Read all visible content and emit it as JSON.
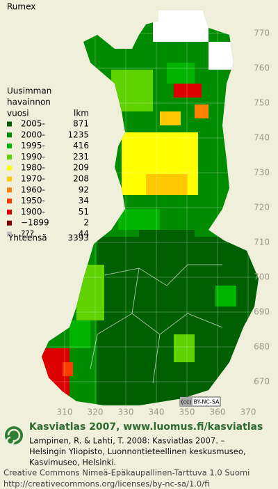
{
  "title": "Rumex",
  "legend": {
    "heading": [
      "Uusimman",
      "havainnon"
    ],
    "year_header": "vuosi",
    "count_header": "lkm",
    "entries": [
      {
        "label": "2005-",
        "count": 871,
        "color": "#005f00"
      },
      {
        "label": "2000-",
        "count": 1235,
        "color": "#008c00"
      },
      {
        "label": "1995-",
        "count": 416,
        "color": "#00b400"
      },
      {
        "label": "1990-",
        "count": 231,
        "color": "#5fd200"
      },
      {
        "label": "1980-",
        "count": 209,
        "color": "#ffff00"
      },
      {
        "label": "1970-",
        "count": 208,
        "color": "#ffc800"
      },
      {
        "label": "1960-",
        "count": 92,
        "color": "#ff8200"
      },
      {
        "label": "1950-",
        "count": 34,
        "color": "#ff3c00"
      },
      {
        "label": "1900-",
        "count": 51,
        "color": "#dc0000"
      },
      {
        "label": "−1899",
        "count": 2,
        "color": "#820000"
      },
      {
        "label": "???",
        "count": 44,
        "color": "#c0c0c0"
      }
    ],
    "total_label": "Yhteensä",
    "total": 3393
  },
  "y_axis": {
    "ticks": [
      770,
      760,
      750,
      740,
      730,
      720,
      710,
      700,
      690,
      680,
      670
    ]
  },
  "x_axis": {
    "ticks": [
      310,
      320,
      330,
      340,
      350,
      360,
      370
    ]
  },
  "badge": "BY-NC-SA",
  "footer": {
    "heading": "Kasviatlas 2007, www.luomus.fi/kasviatlas",
    "citation": [
      "Lampinen, R. & Lahti, T. 2008: Kasviatlas 2007. –",
      "Helsingin Yliopisto, Luonnontieteellinen keskusmuseo,",
      "Kasvimuseo, Helsinki."
    ],
    "license": [
      "Creative Commons Nimeä-Epäkaupallinen-Tarttuva 1.0 Suomi",
      "http://creativecommons.org/licenses/by-nc-sa/1.0/fi"
    ]
  }
}
